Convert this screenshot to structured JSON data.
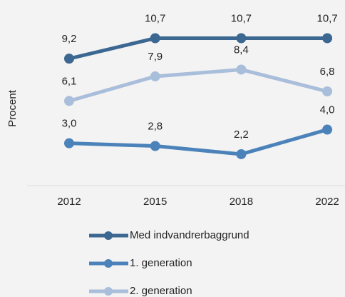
{
  "chart_data": {
    "type": "line",
    "y_label": "Procent",
    "categories": [
      "2012",
      "2015",
      "2018",
      "2022"
    ],
    "ylim": [
      0,
      13.5
    ],
    "series": [
      {
        "name": "Med indvandrerbaggrund",
        "color": "#3b6791",
        "values": [
          9.2,
          10.7,
          10.7,
          10.7
        ],
        "value_labels": [
          "9,2",
          "10,7",
          "10,7",
          "10,7"
        ]
      },
      {
        "name": "1. generation",
        "color": "#4b82b9",
        "values": [
          3.0,
          2.8,
          2.2,
          4.0
        ],
        "value_labels": [
          "3,0",
          "2,8",
          "2,2",
          "4,0"
        ]
      },
      {
        "name": "2. generation",
        "color": "#a9bedb",
        "values": [
          6.1,
          7.9,
          8.4,
          6.8
        ],
        "value_labels": [
          "6,1",
          "7,9",
          "8,4",
          "6,8"
        ]
      }
    ]
  }
}
